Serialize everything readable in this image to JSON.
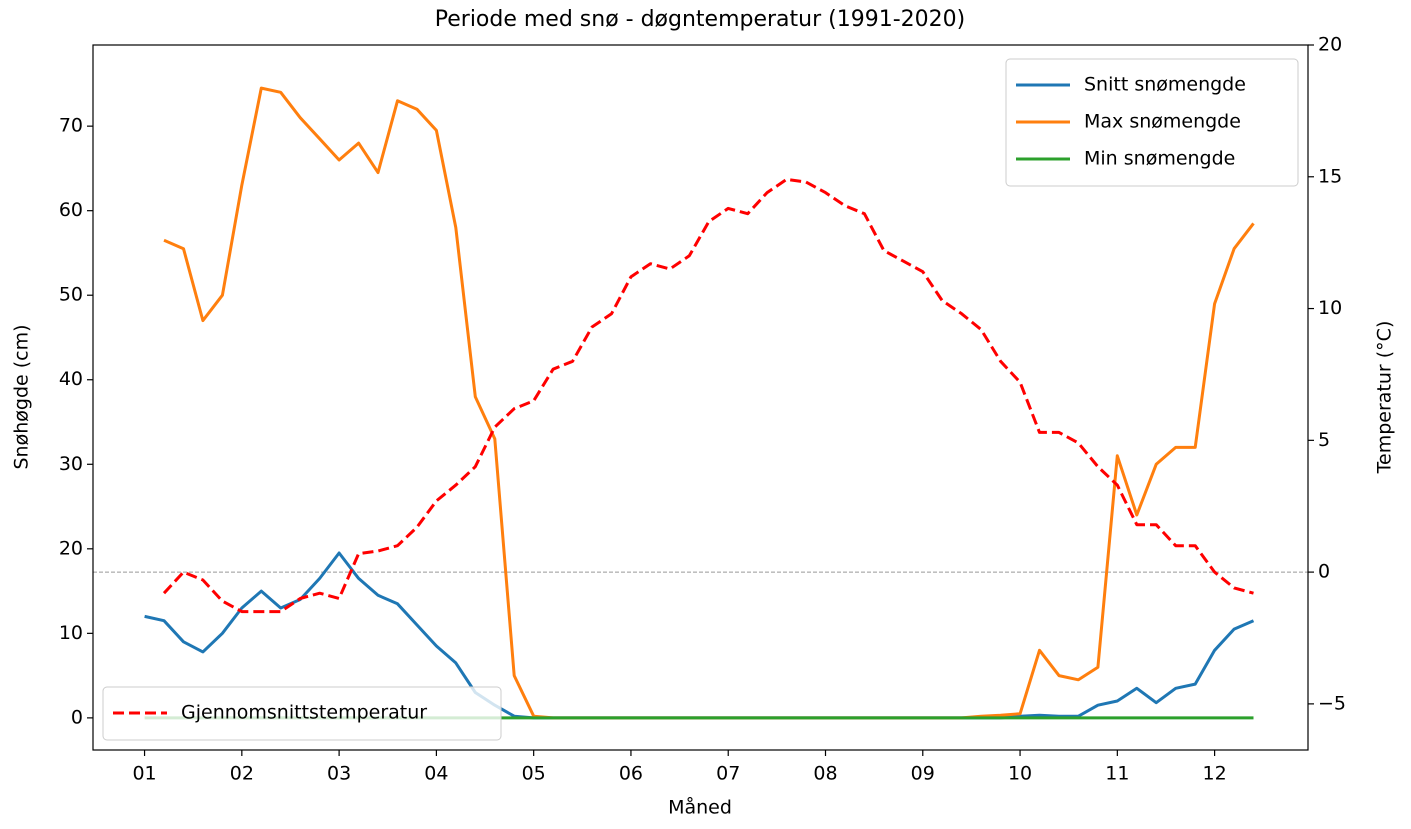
{
  "chart_data": {
    "type": "line",
    "title": "Periode med snø - døgntemperatur (1991-2020)",
    "xlabel": "Måned",
    "ylabel": "Snøhøgde (cm)",
    "y2label": "Temperatur (°C)",
    "x": [
      1.0,
      1.2,
      1.4,
      1.6,
      1.8,
      2.0,
      2.2,
      2.4,
      2.6,
      2.8,
      3.0,
      3.2,
      3.4,
      3.6,
      3.8,
      4.0,
      4.2,
      4.4,
      4.6,
      4.8,
      5.0,
      5.2,
      5.4,
      5.6,
      5.8,
      6.0,
      6.2,
      6.4,
      6.6,
      6.8,
      7.0,
      7.2,
      7.4,
      7.6,
      7.8,
      8.0,
      8.2,
      8.4,
      8.6,
      8.8,
      9.0,
      9.2,
      9.4,
      9.6,
      9.8,
      10.0,
      10.2,
      10.4,
      10.6,
      10.8,
      11.0,
      11.2,
      11.4,
      11.6,
      11.8,
      12.0,
      12.2,
      12.4
    ],
    "xlim": [
      0.47,
      12.96
    ],
    "xticks": [
      {
        "value": 1,
        "label": "01"
      },
      {
        "value": 2,
        "label": "02"
      },
      {
        "value": 3,
        "label": "03"
      },
      {
        "value": 4,
        "label": "04"
      },
      {
        "value": 5,
        "label": "05"
      },
      {
        "value": 6,
        "label": "06"
      },
      {
        "value": 7,
        "label": "07"
      },
      {
        "value": 8,
        "label": "08"
      },
      {
        "value": 9,
        "label": "09"
      },
      {
        "value": 10,
        "label": "10"
      },
      {
        "value": 11,
        "label": "11"
      },
      {
        "value": 12,
        "label": "12"
      }
    ],
    "ylim": [
      -3.8,
      79.6
    ],
    "yticks": [
      0,
      10,
      20,
      30,
      40,
      50,
      60,
      70
    ],
    "y2lim": [
      -6.75,
      20
    ],
    "y2ticks": [
      {
        "value": -5,
        "label": "−5"
      },
      0,
      5,
      10,
      15,
      20
    ],
    "reference_line": {
      "value": 0,
      "axis": "y2",
      "color": "#999999"
    },
    "legend": "upper right",
    "legend2": "lower left",
    "series": [
      {
        "name": "Snitt snømengde",
        "color": "#1f77b4",
        "style": "solid",
        "legend": "legend",
        "values": [
          12,
          11.5,
          9,
          7.8,
          10,
          13,
          15,
          13,
          14,
          16.5,
          19.5,
          16.5,
          14.5,
          13.5,
          11,
          8.5,
          6.5,
          3,
          1.5,
          0.2,
          0,
          0,
          0,
          0,
          0,
          0,
          0,
          0,
          0,
          0,
          0,
          0,
          0,
          0,
          0,
          0,
          0,
          0,
          0,
          0,
          0,
          0,
          0,
          0,
          0,
          0.2,
          0.3,
          0.2,
          0.2,
          1.5,
          2,
          3.5,
          1.8,
          3.5,
          4,
          8,
          10.5,
          11.5
        ]
      },
      {
        "name": "Max snømengde",
        "color": "#ff7f0e",
        "style": "solid",
        "legend": "legend",
        "values": [
          null,
          56.5,
          55.5,
          47,
          50,
          63,
          74.5,
          74,
          71,
          68.5,
          66,
          68,
          64.5,
          73,
          72,
          69.5,
          58,
          38,
          33,
          5,
          0.2,
          0,
          0,
          0,
          0,
          0,
          0,
          0,
          0,
          0,
          0,
          0,
          0,
          0,
          0,
          0,
          0,
          0,
          0,
          0,
          0,
          0,
          0,
          0.2,
          0.3,
          0.5,
          8,
          5,
          4.5,
          6,
          31,
          24,
          30,
          32,
          32,
          49,
          55.5,
          58.5
        ]
      },
      {
        "name": "Min snømengde",
        "color": "#2ca02c",
        "style": "solid",
        "legend": "legend",
        "values": [
          0,
          0,
          0,
          0,
          0,
          0,
          0,
          0,
          0,
          0,
          0,
          0,
          0,
          0,
          0,
          0,
          0,
          0,
          0,
          0,
          0,
          0,
          0,
          0,
          0,
          0,
          0,
          0,
          0,
          0,
          0,
          0,
          0,
          0,
          0,
          0,
          0,
          0,
          0,
          0,
          0,
          0,
          0,
          0,
          0,
          0,
          0,
          0,
          0,
          0,
          0,
          0,
          0,
          0,
          0,
          0,
          0,
          0
        ]
      },
      {
        "name": "Gjennomsnittstemperatur",
        "color": "#ff0000",
        "style": "dashed",
        "axis": "y2",
        "legend": "legend2",
        "values": [
          null,
          -0.8,
          0,
          -0.3,
          -1.1,
          -1.5,
          -1.5,
          -1.5,
          -1.0,
          -0.8,
          -1.0,
          0.7,
          0.8,
          1.0,
          1.7,
          2.7,
          3.3,
          4.0,
          5.5,
          6.2,
          6.5,
          7.7,
          8.0,
          9.3,
          9.8,
          11.2,
          11.7,
          11.5,
          12.0,
          13.3,
          13.8,
          13.6,
          14.4,
          14.9,
          14.8,
          14.4,
          13.9,
          13.6,
          12.2,
          11.8,
          11.4,
          10.3,
          9.8,
          9.2,
          8.0,
          7.2,
          5.3,
          5.3,
          4.9,
          4.0,
          3.3,
          1.8,
          1.8,
          1.0,
          1.0,
          0,
          -0.6,
          -0.8
        ]
      }
    ]
  }
}
